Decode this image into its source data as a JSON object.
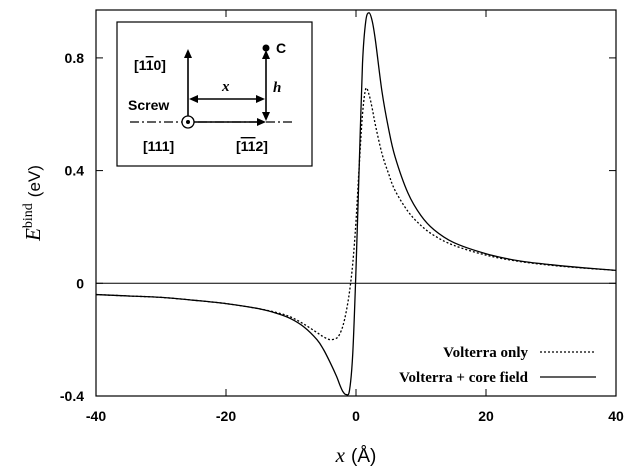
{
  "chart_data": {
    "type": "line",
    "xlabel": "x",
    "xlabel_unit": "(Å)",
    "ylabel": "E",
    "ylabel_sup": "bind",
    "ylabel_unit": "(eV)",
    "xlim": [
      -40,
      40
    ],
    "ylim": [
      -0.4,
      0.97
    ],
    "x_ticks": [
      -40,
      -20,
      0,
      20,
      40
    ],
    "x_tick_labels": [
      "-40",
      "-20",
      "0",
      "20",
      "40"
    ],
    "y_ticks": [
      -0.4,
      0,
      0.4,
      0.8
    ],
    "y_tick_labels": [
      "-0.4",
      "0",
      "0.4",
      "0.8"
    ],
    "grid": false,
    "zero_line": true,
    "legend_position": "bottom-right",
    "series": [
      {
        "name": "Volterra only",
        "style": "dotted",
        "x": [
          -40,
          -35,
          -30,
          -25,
          -20,
          -15,
          -12,
          -10,
          -8,
          -6,
          -5,
          -4,
          -3,
          -2.5,
          -2,
          -1.5,
          -1,
          -0.5,
          0,
          0.5,
          1,
          1.5,
          2,
          2.5,
          3,
          4,
          5,
          6,
          8,
          10,
          12,
          15,
          20,
          25,
          30,
          35,
          40
        ],
        "y": [
          -0.04,
          -0.045,
          -0.05,
          -0.06,
          -0.072,
          -0.09,
          -0.105,
          -0.12,
          -0.145,
          -0.175,
          -0.19,
          -0.2,
          -0.195,
          -0.18,
          -0.15,
          -0.1,
          -0.03,
          0.07,
          0.22,
          0.42,
          0.6,
          0.69,
          0.67,
          0.62,
          0.56,
          0.46,
          0.39,
          0.33,
          0.255,
          0.205,
          0.17,
          0.135,
          0.1,
          0.078,
          0.064,
          0.054,
          0.046
        ]
      },
      {
        "name": "Volterra + core field",
        "style": "solid",
        "x": [
          -40,
          -35,
          -30,
          -25,
          -20,
          -15,
          -12,
          -10,
          -8,
          -6,
          -5,
          -4,
          -3,
          -2.5,
          -2,
          -1.5,
          -1,
          -0.5,
          0,
          0.5,
          1,
          1.5,
          2,
          2.5,
          3,
          4,
          5,
          6,
          8,
          10,
          12,
          15,
          20,
          25,
          30,
          35,
          40
        ],
        "y": [
          -0.04,
          -0.045,
          -0.05,
          -0.06,
          -0.072,
          -0.09,
          -0.108,
          -0.126,
          -0.155,
          -0.2,
          -0.235,
          -0.28,
          -0.33,
          -0.36,
          -0.385,
          -0.395,
          -0.38,
          -0.25,
          0.05,
          0.42,
          0.78,
          0.93,
          0.96,
          0.93,
          0.86,
          0.68,
          0.55,
          0.45,
          0.32,
          0.24,
          0.19,
          0.145,
          0.105,
          0.08,
          0.066,
          0.055,
          0.046
        ]
      }
    ]
  },
  "inset": {
    "dir_up": "[1",
    "dir_up_bar": "1",
    "dir_up_end": "0]",
    "screw_label": "Screw",
    "carbon_label": "C",
    "x_label": "x",
    "h_label": "h",
    "dir_line": "[111]",
    "dir_right": "[",
    "dir_right_bar": "11",
    "dir_right_end": "2]"
  }
}
